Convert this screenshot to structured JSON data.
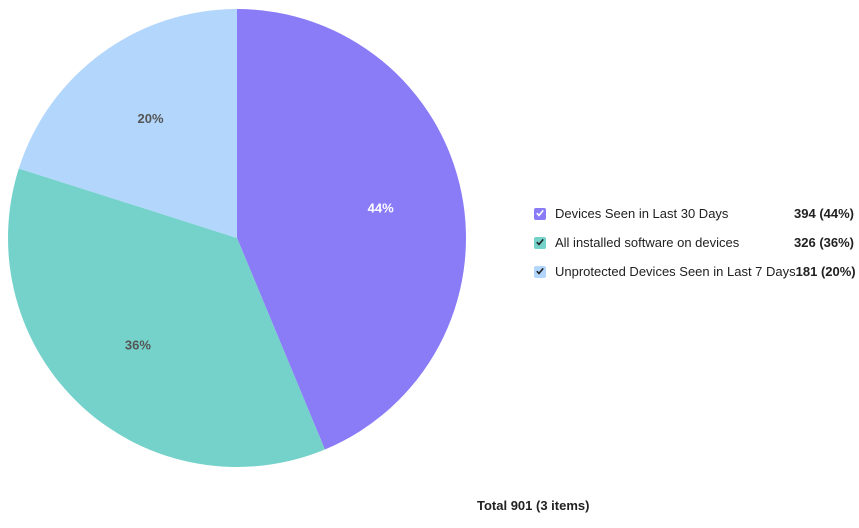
{
  "chart_data": {
    "type": "pie",
    "title": "",
    "slices": [
      {
        "name": "Devices Seen in Last 30 Days",
        "value": 394,
        "percent_label": "44%",
        "legend_value": "394 (44%)",
        "color": "#8a7cf6",
        "label_color": "#ffffff",
        "check_color": "#ffffff"
      },
      {
        "name": "All installed software on devices",
        "value": 326,
        "percent_label": "36%",
        "legend_value": "326 (36%)",
        "color": "#74d2ca",
        "label_color": "#555555",
        "check_color": "#222222"
      },
      {
        "name": "Unprotected Devices Seen in Last 7 Days",
        "value": 181,
        "percent_label": "20%",
        "legend_value": "181 (20%)",
        "color": "#b3d6fd",
        "label_color": "#555555",
        "check_color": "#222222"
      }
    ],
    "legend_placement": "right",
    "start_angle": "top, clockwise"
  },
  "footer": {
    "total_text": "Total 901 (3 items)"
  }
}
